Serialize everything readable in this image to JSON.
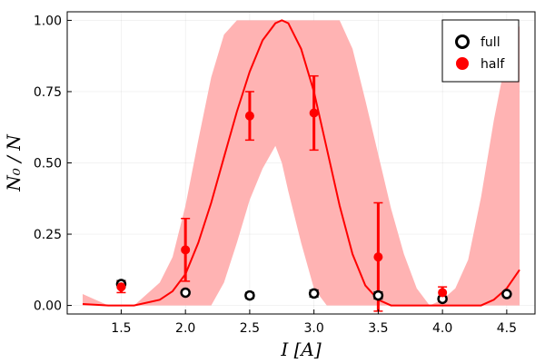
{
  "chart_data": {
    "type": "scatter",
    "xlabel": "I [A]",
    "ylabel": "N₀ / N",
    "xlim": [
      1.08,
      4.72
    ],
    "ylim": [
      -0.03,
      1.03
    ],
    "xticks": [
      "1.5",
      "2.0",
      "2.5",
      "3.0",
      "3.5",
      "4.0",
      "4.5"
    ],
    "yticks": [
      "0.00",
      "0.25",
      "0.50",
      "0.75",
      "1.00"
    ],
    "grid": true,
    "legend_position": "top-right",
    "colors": {
      "half": "#ff0000",
      "full": "#000000",
      "band": "#ffb3b3",
      "curve": "#ff0000"
    },
    "series": [
      {
        "name": "full",
        "marker": "open-circle",
        "x": [
          1.5,
          2.0,
          2.5,
          3.0,
          3.5,
          4.0,
          4.5
        ],
        "y": [
          0.075,
          0.045,
          0.035,
          0.042,
          0.035,
          0.023,
          0.04
        ],
        "yerr": [
          0.012,
          0.006,
          0.01,
          0.012,
          0.012,
          0.008,
          0.007
        ]
      },
      {
        "name": "half",
        "marker": "filled-circle",
        "x": [
          1.5,
          2.0,
          2.5,
          3.0,
          3.5,
          4.0
        ],
        "y": [
          0.065,
          0.195,
          0.665,
          0.675,
          0.17,
          0.045
        ],
        "yerr": [
          0.02,
          0.11,
          0.085,
          0.13,
          0.19,
          0.02
        ]
      }
    ],
    "fit_curve": {
      "x": [
        1.2,
        1.4,
        1.6,
        1.8,
        1.9,
        2.0,
        2.1,
        2.2,
        2.3,
        2.4,
        2.5,
        2.6,
        2.7,
        2.75,
        2.8,
        2.9,
        3.0,
        3.1,
        3.2,
        3.3,
        3.4,
        3.5,
        3.6,
        3.7,
        3.8,
        3.9,
        4.0,
        4.1,
        4.2,
        4.3,
        4.4,
        4.5,
        4.6
      ],
      "y": [
        0.005,
        0.0,
        0.0,
        0.02,
        0.05,
        0.11,
        0.22,
        0.36,
        0.52,
        0.68,
        0.82,
        0.93,
        0.99,
        1.0,
        0.99,
        0.9,
        0.75,
        0.55,
        0.35,
        0.18,
        0.07,
        0.02,
        0.0,
        0.0,
        0.0,
        0.0,
        0.0,
        0.0,
        0.0,
        0.0,
        0.02,
        0.06,
        0.125
      ]
    },
    "confidence_band": {
      "x": [
        1.2,
        1.4,
        1.6,
        1.8,
        1.9,
        2.0,
        2.1,
        2.2,
        2.3,
        2.4,
        2.5,
        2.6,
        2.7,
        2.75,
        2.8,
        2.9,
        3.0,
        3.1,
        3.2,
        3.3,
        3.4,
        3.5,
        3.6,
        3.7,
        3.8,
        3.9,
        4.0,
        4.1,
        4.2,
        4.3,
        4.4,
        4.5,
        4.6
      ],
      "lower": [
        0.0,
        0.0,
        0.0,
        0.0,
        0.0,
        0.0,
        0.0,
        0.0,
        0.08,
        0.22,
        0.37,
        0.48,
        0.56,
        0.5,
        0.4,
        0.22,
        0.06,
        0.0,
        0.0,
        0.0,
        0.0,
        0.0,
        0.0,
        0.0,
        0.0,
        0.0,
        0.0,
        0.0,
        0.0,
        0.0,
        0.0,
        0.0,
        0.0
      ],
      "upper": [
        0.04,
        0.0,
        0.0,
        0.08,
        0.17,
        0.35,
        0.58,
        0.8,
        0.95,
        1.0,
        1.0,
        1.0,
        1.0,
        1.0,
        1.0,
        1.0,
        1.0,
        1.0,
        1.0,
        0.9,
        0.72,
        0.53,
        0.34,
        0.18,
        0.06,
        0.0,
        0.02,
        0.06,
        0.16,
        0.38,
        0.65,
        0.88,
        0.98
      ]
    }
  }
}
